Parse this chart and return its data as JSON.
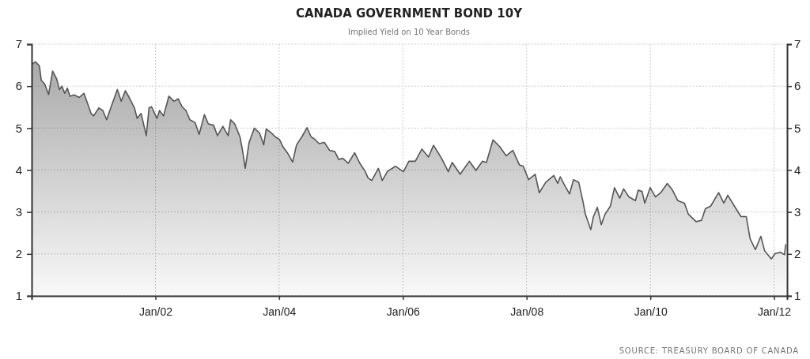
{
  "chart_data": {
    "type": "area",
    "title": "CANADA GOVERNMENT BOND 10Y",
    "subtitle": "Implied Yield on 10 Year Bonds",
    "annotations": [
      "SOURCE: TREASURY BOARD OF CANADA"
    ],
    "xlim": [
      "2000-01-01",
      "2012-03-18"
    ],
    "xticks": [
      {
        "value": "2002-01-01",
        "label": "Jan/02"
      },
      {
        "value": "2004-01-01",
        "label": "Jan/04"
      },
      {
        "value": "2006-01-01",
        "label": "Jan/06"
      },
      {
        "value": "2008-01-01",
        "label": "Jan/08"
      },
      {
        "value": "2010-01-01",
        "label": "Jan/10"
      },
      {
        "value": "2012-01-01",
        "label": "Jan/12"
      }
    ],
    "ylim": [
      1,
      7
    ],
    "yticks": [
      1,
      2,
      3,
      4,
      5,
      6,
      7
    ],
    "y2lim": [
      1,
      7
    ],
    "y2ticks": [
      1,
      2,
      3,
      4,
      5,
      6,
      7
    ],
    "grid": true,
    "series": [
      {
        "color": "#555555",
        "x": [
          "2000-01-01",
          "2000-01-24",
          "2000-02-16",
          "2000-02-27",
          "2000-03-18",
          "2000-04-10",
          "2000-05-04",
          "2000-05-28",
          "2000-06-13",
          "2000-06-28",
          "2000-07-14",
          "2000-07-30",
          "2000-08-14",
          "2000-09-07",
          "2000-10-08",
          "2000-11-05",
          "2000-12-17",
          "2001-01-01",
          "2001-02-01",
          "2001-02-24",
          "2001-03-19",
          "2001-04-12",
          "2001-05-21",
          "2001-06-13",
          "2001-07-07",
          "2001-07-30",
          "2001-08-30",
          "2001-09-15",
          "2001-10-08",
          "2001-11-08",
          "2001-11-24",
          "2001-12-09",
          "2002-01-10",
          "2002-01-25",
          "2002-02-18",
          "2002-03-21",
          "2002-04-21",
          "2002-05-15",
          "2002-06-07",
          "2002-06-30",
          "2002-07-23",
          "2002-08-23",
          "2002-09-16",
          "2002-10-17",
          "2002-11-09",
          "2002-12-10",
          "2003-01-02",
          "2003-02-03",
          "2003-03-06",
          "2003-03-21",
          "2003-04-14",
          "2003-05-15",
          "2003-05-30",
          "2003-06-15",
          "2003-07-08",
          "2003-08-08",
          "2003-09-08",
          "2003-10-02",
          "2003-10-17",
          "2003-11-17",
          "2003-12-10",
          "2004-01-03",
          "2004-01-26",
          "2004-02-19",
          "2004-03-21",
          "2004-04-13",
          "2004-05-14",
          "2004-06-14",
          "2004-07-08",
          "2004-07-31",
          "2004-08-24",
          "2004-09-24",
          "2004-10-25",
          "2004-11-25",
          "2004-12-18",
          "2005-01-11",
          "2005-02-12",
          "2005-03-22",
          "2005-04-22",
          "2005-05-23",
          "2005-06-08",
          "2005-07-01",
          "2005-08-09",
          "2005-09-01",
          "2005-10-02",
          "2005-11-18",
          "2006-01-04",
          "2006-02-05",
          "2006-03-15",
          "2006-04-23",
          "2006-06-01",
          "2006-07-01",
          "2006-08-17",
          "2006-09-26",
          "2006-10-19",
          "2006-12-05",
          "2007-01-28",
          "2007-03-08",
          "2007-04-16",
          "2007-05-09",
          "2007-06-17",
          "2007-07-26",
          "2007-09-03",
          "2007-10-12",
          "2007-11-20",
          "2007-12-13",
          "2008-01-13",
          "2008-02-21",
          "2008-03-16",
          "2008-04-24",
          "2008-06-10",
          "2008-07-03",
          "2008-07-18",
          "2008-08-11",
          "2008-09-11",
          "2008-10-04",
          "2008-11-04",
          "2008-11-28",
          "2008-12-13",
          "2009-01-14",
          "2009-01-30",
          "2009-02-22",
          "2009-03-17",
          "2009-04-09",
          "2009-05-10",
          "2009-06-03",
          "2009-07-04",
          "2009-07-27",
          "2009-08-27",
          "2009-10-05",
          "2009-10-21",
          "2009-11-13",
          "2009-11-29",
          "2009-12-31",
          "2010-01-31",
          "2010-03-03",
          "2010-04-11",
          "2010-05-12",
          "2010-06-12",
          "2010-07-21",
          "2010-08-13",
          "2010-09-28",
          "2010-10-30",
          "2010-11-22",
          "2010-12-23",
          "2011-02-08",
          "2011-03-11",
          "2011-04-03",
          "2011-05-12",
          "2011-06-20",
          "2011-07-21",
          "2011-08-13",
          "2011-09-13",
          "2011-10-15",
          "2011-11-07",
          "2011-12-16",
          "2012-01-08",
          "2012-02-08",
          "2012-03-03",
          "2012-03-10"
        ],
        "values": [
          6.52,
          6.58,
          6.48,
          6.14,
          6.05,
          5.8,
          6.36,
          6.17,
          5.92,
          6.0,
          5.83,
          5.95,
          5.76,
          5.79,
          5.73,
          5.83,
          5.35,
          5.29,
          5.48,
          5.42,
          5.2,
          5.48,
          5.92,
          5.64,
          5.89,
          5.73,
          5.48,
          5.23,
          5.35,
          4.82,
          5.48,
          5.51,
          5.23,
          5.42,
          5.29,
          5.76,
          5.64,
          5.7,
          5.51,
          5.42,
          5.2,
          5.13,
          4.85,
          5.32,
          5.1,
          5.07,
          4.82,
          5.04,
          4.82,
          5.2,
          5.1,
          4.79,
          4.47,
          4.04,
          4.66,
          5.0,
          4.88,
          4.6,
          4.98,
          4.88,
          4.79,
          4.73,
          4.54,
          4.41,
          4.19,
          4.6,
          4.79,
          5.01,
          4.79,
          4.73,
          4.63,
          4.66,
          4.47,
          4.44,
          4.25,
          4.28,
          4.16,
          4.41,
          4.16,
          3.97,
          3.82,
          3.75,
          4.04,
          3.75,
          3.97,
          4.09,
          3.96,
          4.21,
          4.21,
          4.5,
          4.31,
          4.59,
          4.28,
          3.96,
          4.18,
          3.9,
          4.21,
          3.99,
          4.21,
          4.18,
          4.72,
          4.56,
          4.34,
          4.47,
          4.12,
          4.09,
          3.77,
          3.9,
          3.46,
          3.71,
          3.87,
          3.68,
          3.84,
          3.65,
          3.43,
          3.77,
          3.71,
          3.27,
          2.95,
          2.58,
          2.89,
          3.11,
          2.7,
          2.95,
          3.14,
          3.58,
          3.33,
          3.55,
          3.36,
          3.27,
          3.52,
          3.49,
          3.21,
          3.58,
          3.36,
          3.46,
          3.68,
          3.52,
          3.27,
          3.21,
          2.95,
          2.77,
          2.8,
          3.08,
          3.14,
          3.46,
          3.21,
          3.4,
          3.14,
          2.89,
          2.89,
          2.36,
          2.1,
          2.42,
          2.07,
          1.88,
          2.01,
          2.04,
          1.98,
          2.23
        ]
      }
    ]
  }
}
